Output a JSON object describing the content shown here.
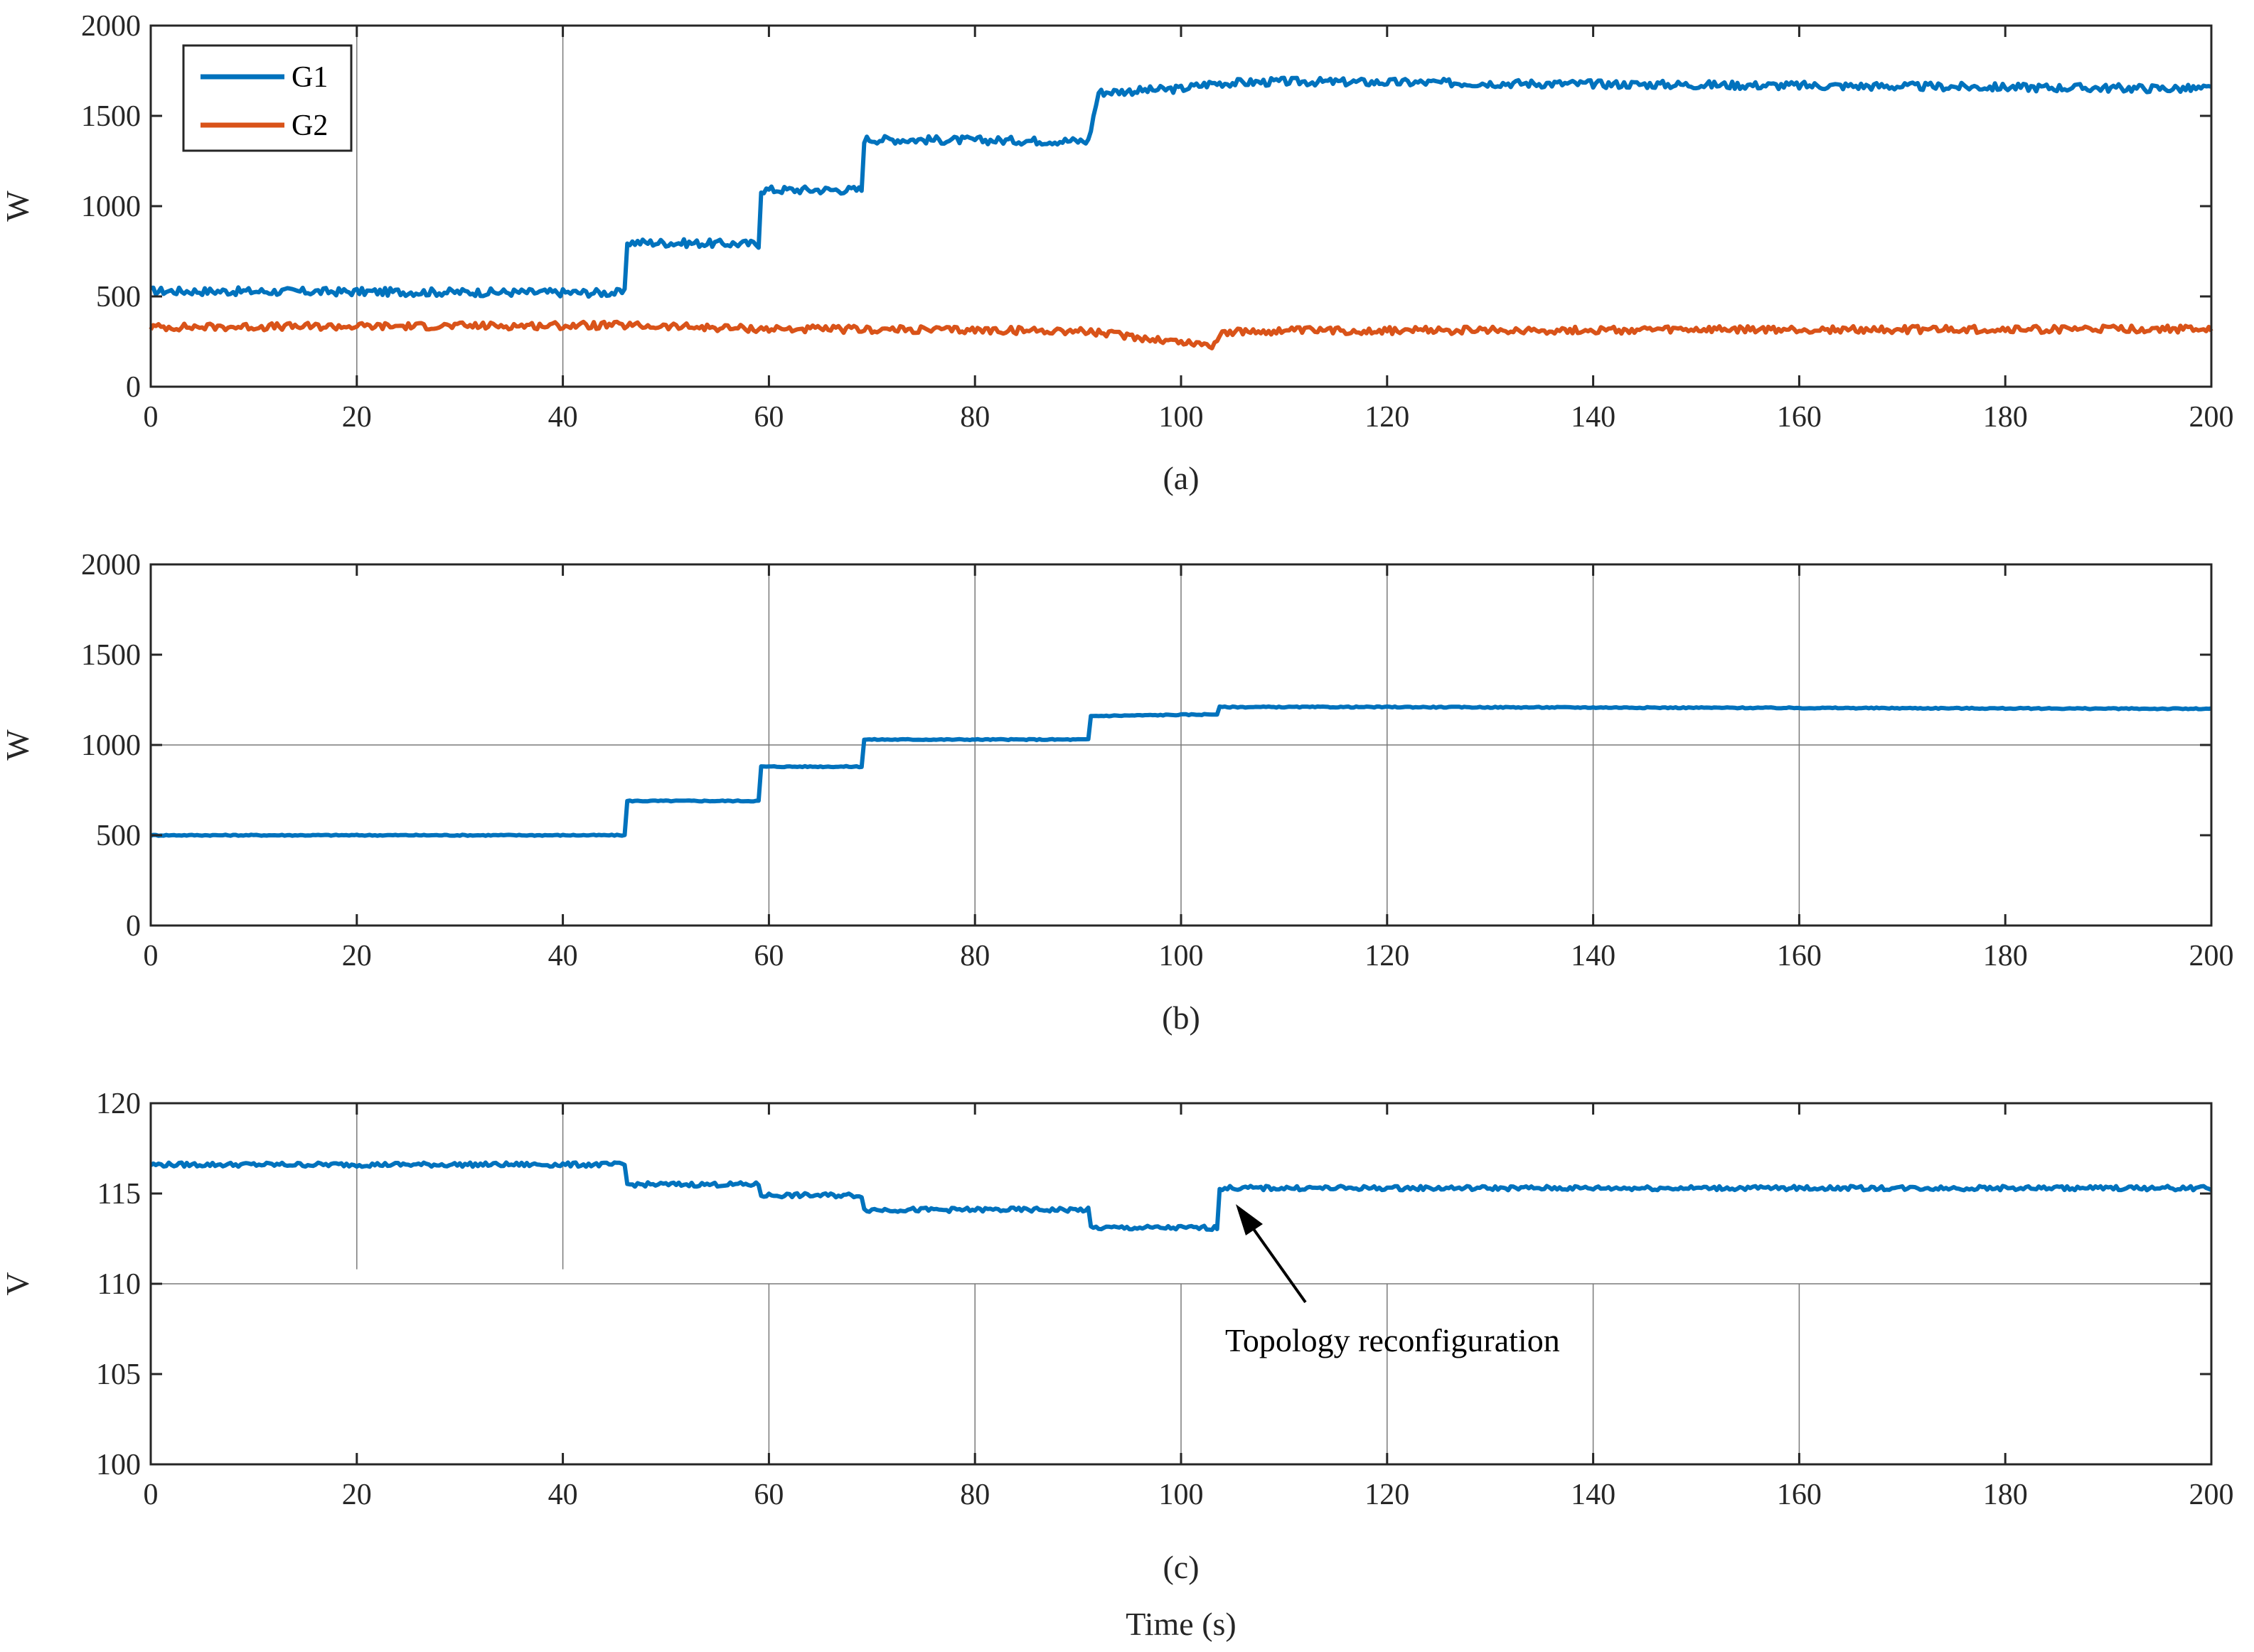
{
  "chart_data": [
    {
      "type": "line",
      "panel_label": "(a)",
      "ylabel": "W",
      "xlabel": "",
      "xlim": [
        0,
        200
      ],
      "ylim": [
        0,
        2000
      ],
      "xticks": [
        0,
        20,
        40,
        60,
        80,
        100,
        120,
        140,
        160,
        180,
        200
      ],
      "yticks": [
        0,
        500,
        1000,
        1500,
        2000
      ],
      "grid": "partial",
      "legend_position": "top-left",
      "series": [
        {
          "name": "G1",
          "color": "#0072BD",
          "x": [
            0,
            46,
            46,
            59,
            59,
            69,
            69,
            91,
            92,
            100,
            103,
            110,
            200
          ],
          "y": [
            530,
            520,
            800,
            790,
            1090,
            1090,
            1370,
            1360,
            1630,
            1650,
            1680,
            1690,
            1650
          ]
        },
        {
          "name": "G2",
          "color": "#D95319",
          "x": [
            0,
            45,
            60,
            90,
            95,
            98,
            103,
            104,
            110,
            200
          ],
          "y": [
            330,
            340,
            320,
            310,
            280,
            260,
            230,
            300,
            310,
            320
          ]
        }
      ]
    },
    {
      "type": "line",
      "panel_label": "(b)",
      "ylabel": "W",
      "xlabel": "",
      "xlim": [
        0,
        200
      ],
      "ylim": [
        0,
        2000
      ],
      "xticks": [
        0,
        20,
        40,
        60,
        80,
        100,
        120,
        140,
        160,
        180,
        200
      ],
      "yticks": [
        0,
        500,
        1000,
        1500,
        2000
      ],
      "grid": "partial",
      "series": [
        {
          "color": "#0072BD",
          "x": [
            0,
            46,
            46,
            59,
            59,
            69,
            69,
            91,
            91,
            103.5,
            103.5,
            120,
            200
          ],
          "y": [
            500,
            500,
            690,
            690,
            880,
            880,
            1030,
            1030,
            1160,
            1170,
            1210,
            1210,
            1200
          ]
        }
      ]
    },
    {
      "type": "line",
      "panel_label": "(c)",
      "ylabel": "V",
      "xlabel": "Time (s)",
      "xlim": [
        0,
        200
      ],
      "ylim": [
        100,
        120
      ],
      "xticks": [
        0,
        20,
        40,
        60,
        80,
        100,
        120,
        140,
        160,
        180,
        200
      ],
      "yticks": [
        100,
        105,
        110,
        115,
        120
      ],
      "grid": "partial",
      "annotation": {
        "text": "Topology reconfiguration",
        "x": 104,
        "y": 113.5
      },
      "series": [
        {
          "color": "#0072BD",
          "x": [
            0,
            46,
            46,
            59,
            59,
            69,
            69,
            91,
            91,
            103.5,
            103.5,
            200
          ],
          "y": [
            116.6,
            116.6,
            115.5,
            115.5,
            114.9,
            114.9,
            114.1,
            114.1,
            113.1,
            113.1,
            115.3,
            115.3
          ]
        }
      ]
    }
  ]
}
